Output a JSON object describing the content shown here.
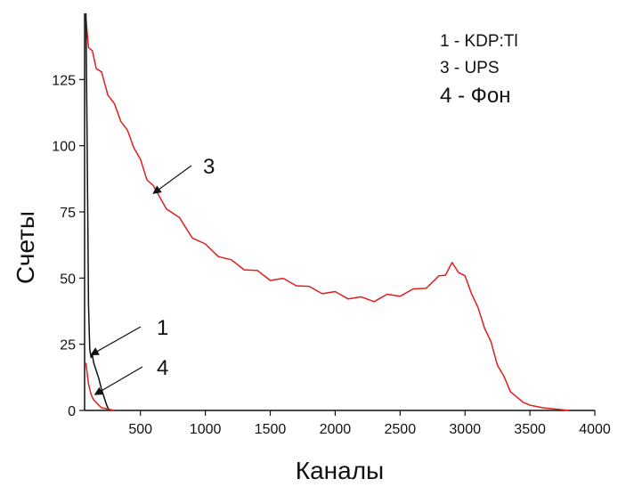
{
  "chart_data": {
    "type": "line",
    "xlabel": "Каналы",
    "ylabel": "Счеты",
    "xlim": [
      70,
      4000
    ],
    "ylim": [
      0,
      150
    ],
    "xticks": [
      500,
      1000,
      1500,
      2000,
      2500,
      3000,
      3500,
      4000
    ],
    "yticks": [
      0,
      25,
      50,
      75,
      100,
      125
    ],
    "grid": false,
    "legend_position": "top-right",
    "legend": [
      "1 - KDP:Tl",
      "3 - UPS",
      "4 - Фон"
    ],
    "series": [
      {
        "label": "3",
        "color": "#e11d1d",
        "x": [
          80,
          100,
          130,
          160,
          200,
          250,
          300,
          350,
          400,
          450,
          500,
          550,
          600,
          700,
          800,
          900,
          1000,
          1100,
          1200,
          1300,
          1400,
          1500,
          1600,
          1700,
          1800,
          1900,
          2000,
          2100,
          2200,
          2300,
          2400,
          2500,
          2600,
          2700,
          2800,
          2850,
          2900,
          2950,
          3000,
          3050,
          3100,
          3150,
          3200,
          3250,
          3300,
          3350,
          3400,
          3450,
          3500,
          3600,
          3700,
          3800
        ],
        "y": [
          148,
          138,
          135,
          130,
          127,
          120,
          115,
          110,
          105,
          100,
          94,
          88,
          84,
          77,
          72,
          66,
          62,
          59,
          56,
          54,
          52,
          50,
          49,
          48,
          46,
          45,
          44,
          43,
          42,
          42,
          43,
          44,
          45,
          47,
          50,
          52,
          55,
          53,
          50,
          45,
          38,
          32,
          25,
          18,
          12,
          8,
          5,
          3,
          2,
          1,
          0.5,
          0
        ]
      },
      {
        "label": "1",
        "color": "#111111",
        "x": [
          80,
          90,
          100,
          110,
          120,
          130,
          140,
          160,
          180,
          200,
          220,
          240,
          260
        ],
        "y": [
          150,
          100,
          40,
          23,
          20,
          21,
          18,
          15,
          12,
          8,
          5,
          2,
          0
        ]
      },
      {
        "label": "4",
        "color": "#e11d1d",
        "x": [
          80,
          90,
          100,
          110,
          120,
          130,
          140,
          160,
          180,
          200,
          250,
          300
        ],
        "y": [
          18,
          14,
          10,
          8,
          6,
          5,
          4,
          3,
          2,
          1,
          0.5,
          0
        ]
      }
    ],
    "annotations": [
      "1",
      "3",
      "4"
    ]
  }
}
